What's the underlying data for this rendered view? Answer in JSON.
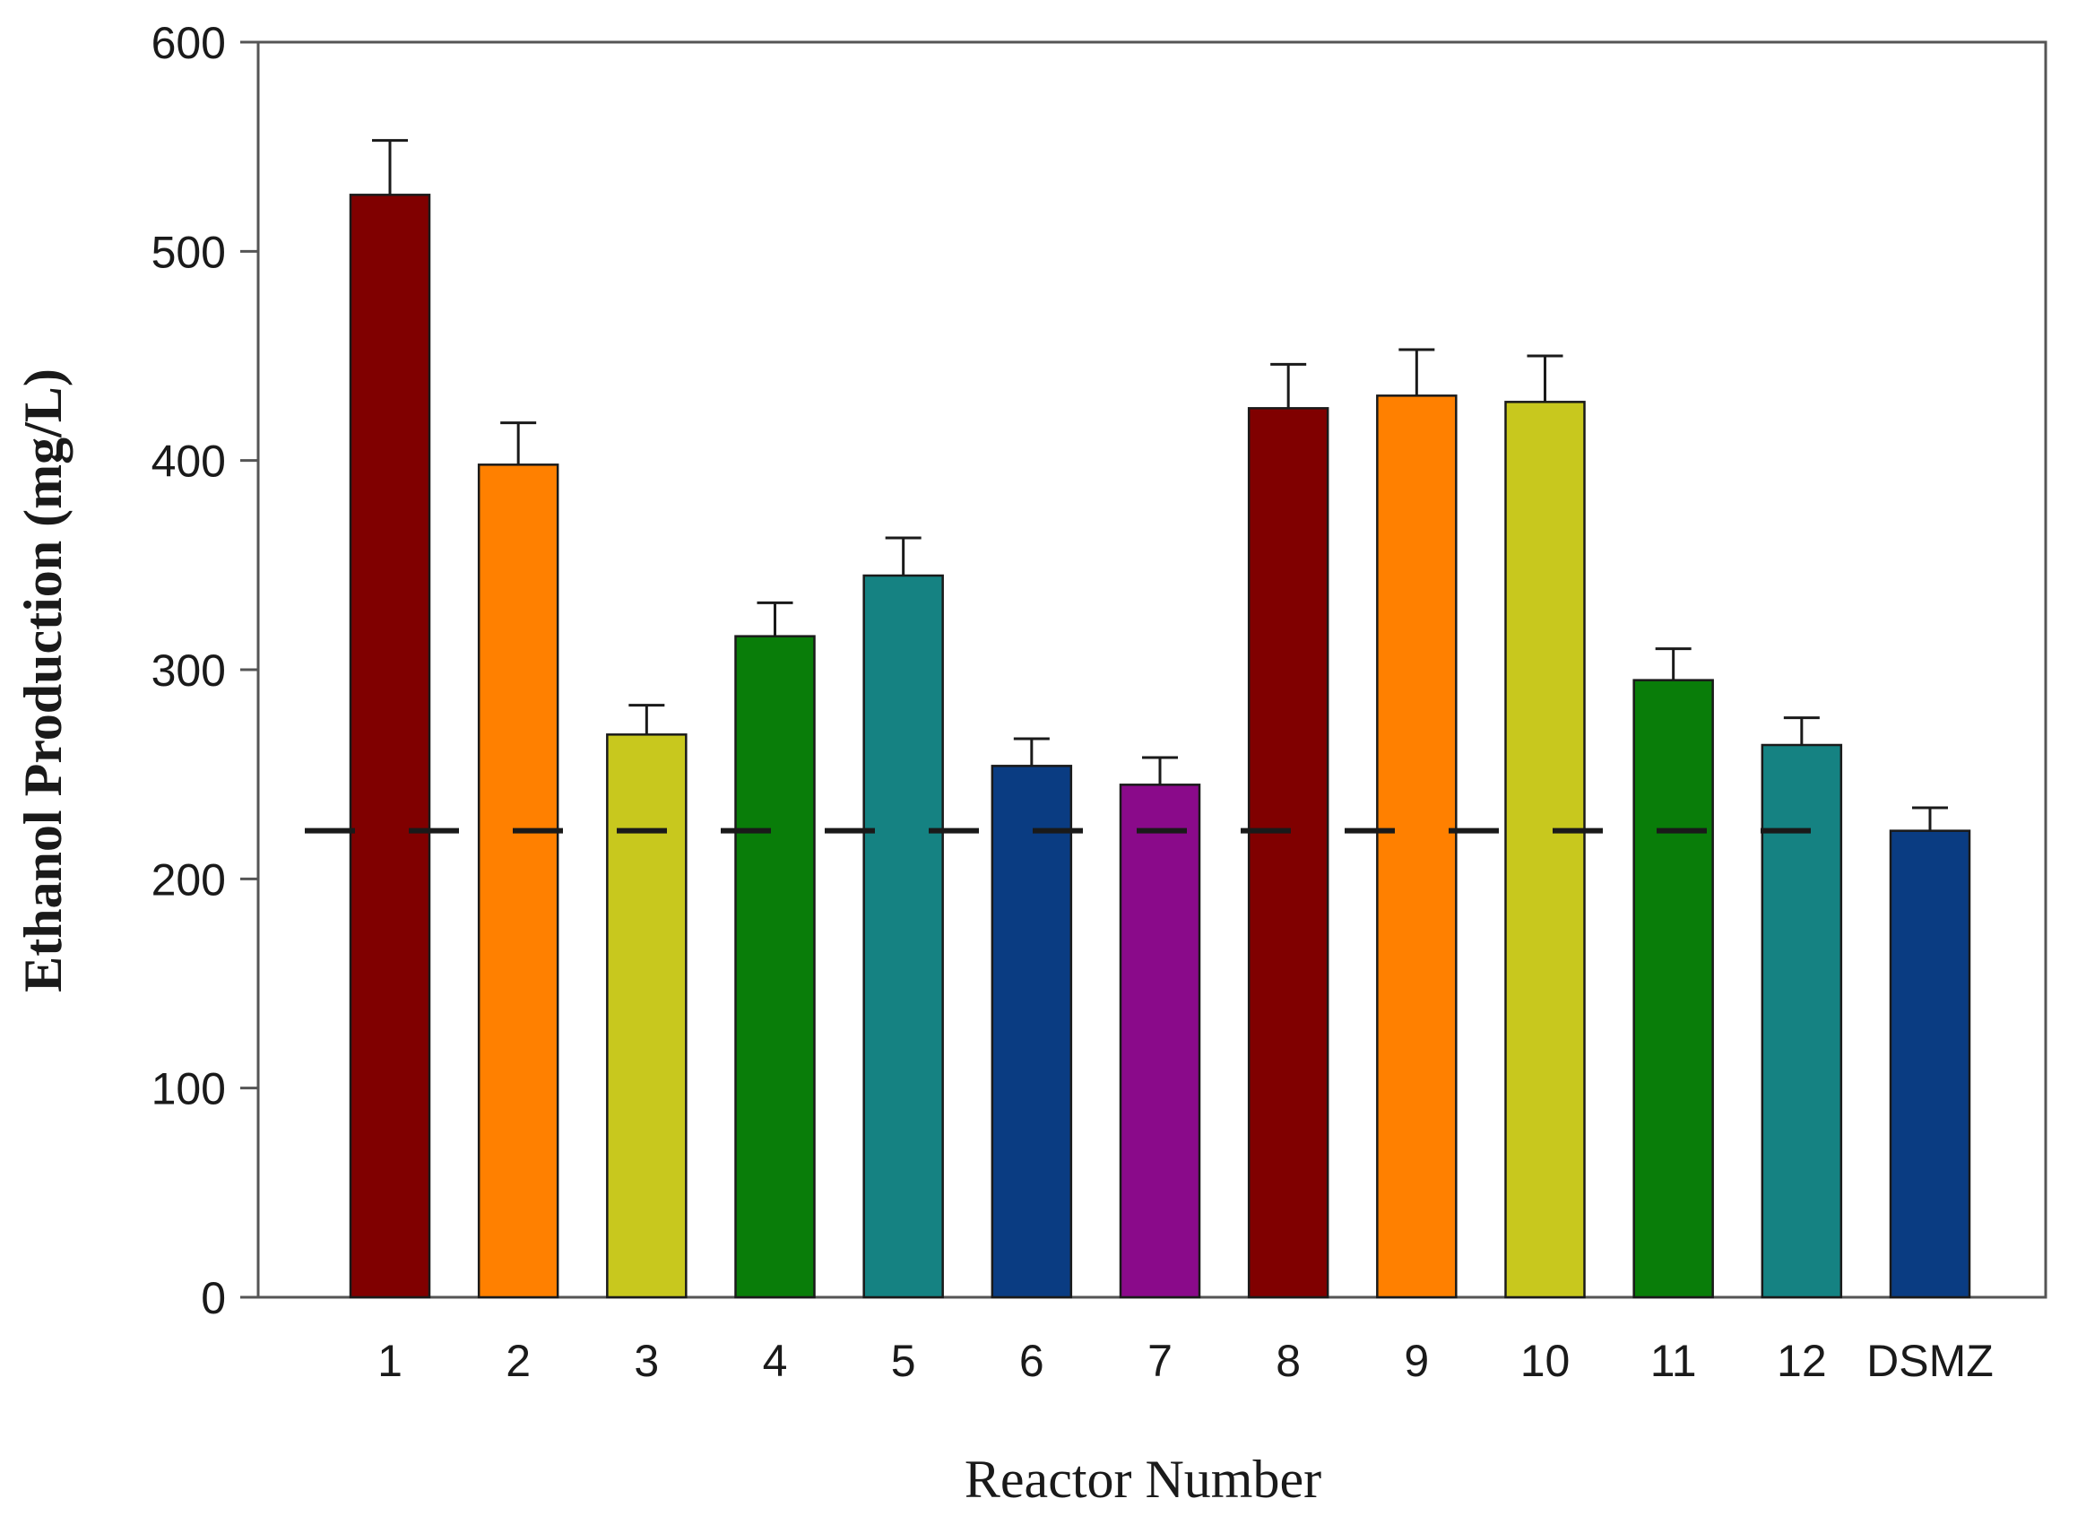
{
  "chart_data": {
    "type": "bar",
    "title": "",
    "xlabel": "Reactor Number",
    "ylabel": "Ethanol Production (mg/L)",
    "categories": [
      "1",
      "2",
      "3",
      "4",
      "5",
      "6",
      "7",
      "8",
      "9",
      "10",
      "11",
      "12",
      "DSMZ"
    ],
    "values": [
      527,
      398,
      269,
      316,
      345,
      254,
      245,
      425,
      431,
      428,
      295,
      264,
      223
    ],
    "error_upper": [
      26,
      20,
      14,
      16,
      18,
      13,
      13,
      21,
      22,
      22,
      15,
      13,
      11
    ],
    "bar_colors": [
      "#800000",
      "#ff8000",
      "#c8c81e",
      "#097d09",
      "#158282",
      "#0a3c82",
      "#8a0a8a",
      "#800000",
      "#ff8000",
      "#c8c81e",
      "#097d09",
      "#158282",
      "#0a3c82"
    ],
    "reference_line": {
      "value": 223,
      "style": "dashed",
      "color": "#1a1a1a"
    },
    "ylim": [
      0,
      600
    ],
    "yticks": [
      0,
      100,
      200,
      300,
      400,
      500,
      600
    ],
    "grid": false,
    "legend": "none"
  }
}
